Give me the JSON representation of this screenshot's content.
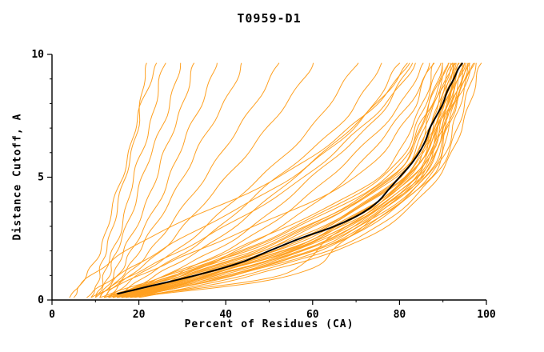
{
  "chart_data": {
    "type": "line",
    "title": "T0959-D1",
    "xlabel": "Percent of Residues (CA)",
    "ylabel": "Distance Cutoff, A",
    "xlim": [
      0,
      100
    ],
    "ylim": [
      0,
      10
    ],
    "x_ticks": [
      0,
      20,
      40,
      60,
      80,
      100
    ],
    "y_ticks": [
      0,
      5,
      10
    ],
    "x_minor_step": 10,
    "y_minor_step": 1,
    "grid": "off",
    "legend": "none",
    "series_color": "#ffa020",
    "highlight_color": "#000000",
    "anchor_cutoffs": [
      0.1,
      1,
      2.5,
      5,
      7.5,
      9.65
    ],
    "orange_series": [
      [
        9,
        11,
        13,
        17,
        20,
        22
      ],
      [
        10,
        12,
        15,
        19,
        23,
        26
      ],
      [
        10,
        13,
        16,
        21,
        26,
        30
      ],
      [
        11,
        14,
        18,
        24,
        29,
        33
      ],
      [
        11,
        15,
        20,
        27,
        33,
        38
      ],
      [
        12,
        16,
        22,
        30,
        38,
        44
      ],
      [
        12,
        17,
        25,
        35,
        45,
        52
      ],
      [
        13,
        18,
        28,
        40,
        52,
        60
      ],
      [
        5,
        8,
        12,
        16,
        20,
        24
      ],
      [
        13,
        20,
        32,
        48,
        62,
        70
      ],
      [
        14,
        22,
        35,
        52,
        68,
        76
      ],
      [
        14,
        24,
        38,
        56,
        72,
        80
      ],
      [
        15,
        26,
        42,
        60,
        75,
        83
      ],
      [
        15,
        28,
        45,
        64,
        78,
        86
      ],
      [
        16,
        30,
        48,
        68,
        80,
        88
      ],
      [
        10,
        18,
        35,
        58,
        74,
        84
      ],
      [
        8,
        15,
        30,
        55,
        72,
        82
      ],
      [
        4,
        9,
        22,
        52,
        72,
        82
      ],
      [
        12,
        30,
        55,
        78,
        86,
        90
      ],
      [
        13,
        32,
        58,
        80,
        87,
        91
      ],
      [
        14,
        34,
        60,
        82,
        88,
        92
      ],
      [
        15,
        36,
        62,
        83,
        89,
        93
      ],
      [
        16,
        38,
        64,
        84,
        90,
        94
      ],
      [
        12,
        28,
        52,
        79,
        88,
        93
      ],
      [
        13,
        31,
        56,
        81,
        89,
        94
      ],
      [
        14,
        33,
        59,
        82,
        90,
        95
      ],
      [
        15,
        35,
        61,
        84,
        91,
        95
      ],
      [
        16,
        37,
        63,
        85,
        91,
        96
      ],
      [
        17,
        40,
        66,
        86,
        92,
        96
      ],
      [
        18,
        42,
        68,
        87,
        92,
        97
      ],
      [
        12,
        27,
        50,
        76,
        85,
        89
      ],
      [
        13,
        29,
        53,
        78,
        86,
        90
      ],
      [
        14,
        32,
        57,
        80,
        88,
        92
      ],
      [
        15,
        34,
        60,
        82,
        89,
        93
      ],
      [
        16,
        36,
        62,
        84,
        90,
        94
      ],
      [
        17,
        39,
        65,
        85,
        91,
        95
      ],
      [
        18,
        41,
        67,
        86,
        92,
        96
      ],
      [
        11,
        26,
        48,
        75,
        84,
        88
      ],
      [
        12,
        28,
        51,
        77,
        86,
        91
      ],
      [
        13,
        30,
        54,
        79,
        87,
        92
      ],
      [
        14,
        33,
        58,
        81,
        89,
        94
      ],
      [
        15,
        35,
        61,
        83,
        90,
        95
      ],
      [
        16,
        38,
        64,
        85,
        91,
        96
      ],
      [
        17,
        41,
        67,
        87,
        93,
        97
      ],
      [
        19,
        44,
        70,
        88,
        94,
        98
      ],
      [
        20,
        46,
        72,
        89,
        95,
        99
      ],
      [
        9,
        20,
        40,
        70,
        82,
        87
      ],
      [
        16,
        52,
        64,
        82,
        89,
        93
      ],
      [
        18,
        55,
        68,
        84,
        90,
        94
      ]
    ],
    "black_series": {
      "cutoffs": [
        0.25,
        0.5,
        1,
        1.5,
        2,
        2.5,
        3,
        3.5,
        4,
        4.5,
        5,
        5.5,
        6,
        6.5,
        7,
        7.5,
        8,
        8.5,
        9,
        9.4,
        9.65
      ],
      "percents": [
        15,
        21,
        33,
        43,
        50,
        57,
        65,
        71,
        75,
        77.5,
        80,
        82.5,
        84.5,
        86,
        87,
        88.5,
        90,
        91,
        92.5,
        93.5,
        94.5
      ]
    }
  }
}
